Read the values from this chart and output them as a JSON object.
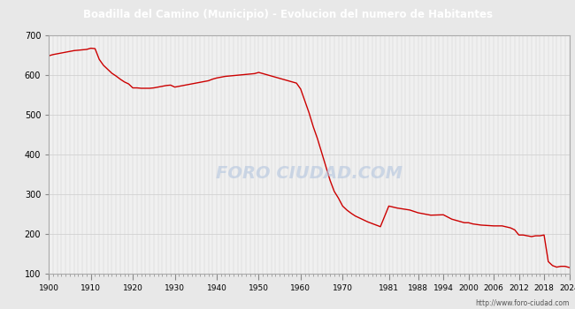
{
  "title": "Boadilla del Camino (Municipio) - Evolucion del numero de Habitantes",
  "title_color": "#ffffff",
  "title_bg_color": "#4d7cc7",
  "watermark": "FORO CIUDAD.COM",
  "url": "http://www.foro-ciudad.com",
  "line_color": "#cc0000",
  "bg_color": "#e8e8e8",
  "plot_bg_color": "#f0f0f0",
  "ylim": [
    100,
    700
  ],
  "yticks": [
    100,
    200,
    300,
    400,
    500,
    600,
    700
  ],
  "xtick_labels": [
    "1900",
    "1910",
    "1920",
    "1930",
    "1940",
    "1950",
    "1960",
    "1970",
    "1981",
    "1988",
    "1994",
    "2000",
    "2006",
    "2012",
    "2018",
    "2024"
  ],
  "years": [
    1900,
    1901,
    1902,
    1903,
    1904,
    1905,
    1906,
    1907,
    1908,
    1909,
    1910,
    1911,
    1912,
    1913,
    1914,
    1915,
    1916,
    1917,
    1918,
    1919,
    1920,
    1921,
    1922,
    1923,
    1924,
    1925,
    1926,
    1927,
    1928,
    1929,
    1930,
    1931,
    1932,
    1933,
    1934,
    1935,
    1936,
    1937,
    1938,
    1939,
    1940,
    1941,
    1942,
    1943,
    1944,
    1945,
    1946,
    1947,
    1948,
    1949,
    1950,
    1951,
    1952,
    1953,
    1954,
    1955,
    1956,
    1957,
    1958,
    1959,
    1960,
    1961,
    1962,
    1963,
    1964,
    1965,
    1966,
    1967,
    1968,
    1969,
    1970,
    1971,
    1972,
    1973,
    1974,
    1975,
    1976,
    1977,
    1978,
    1979,
    1981,
    1983,
    1986,
    1988,
    1991,
    1994,
    1996,
    1999,
    2000,
    2001,
    2003,
    2006,
    2007,
    2008,
    2010,
    2011,
    2012,
    2013,
    2015,
    2016,
    2017,
    2018,
    2019,
    2020,
    2021,
    2022,
    2023,
    2024
  ],
  "values": [
    649,
    652,
    654,
    656,
    658,
    660,
    662,
    663,
    664,
    665,
    668,
    667,
    640,
    625,
    615,
    605,
    598,
    590,
    583,
    578,
    568,
    568,
    567,
    567,
    567,
    568,
    570,
    572,
    574,
    575,
    570,
    572,
    574,
    576,
    578,
    580,
    582,
    584,
    586,
    590,
    593,
    595,
    597,
    598,
    599,
    600,
    601,
    602,
    603,
    604,
    607,
    604,
    601,
    598,
    595,
    592,
    589,
    586,
    583,
    580,
    565,
    535,
    505,
    470,
    440,
    405,
    370,
    335,
    307,
    290,
    270,
    260,
    252,
    245,
    240,
    235,
    230,
    226,
    222,
    218,
    270,
    265,
    260,
    253,
    247,
    248,
    237,
    228,
    228,
    225,
    222,
    220,
    220,
    220,
    215,
    210,
    197,
    197,
    193,
    195,
    195,
    197,
    130,
    120,
    116,
    118,
    118,
    115
  ]
}
